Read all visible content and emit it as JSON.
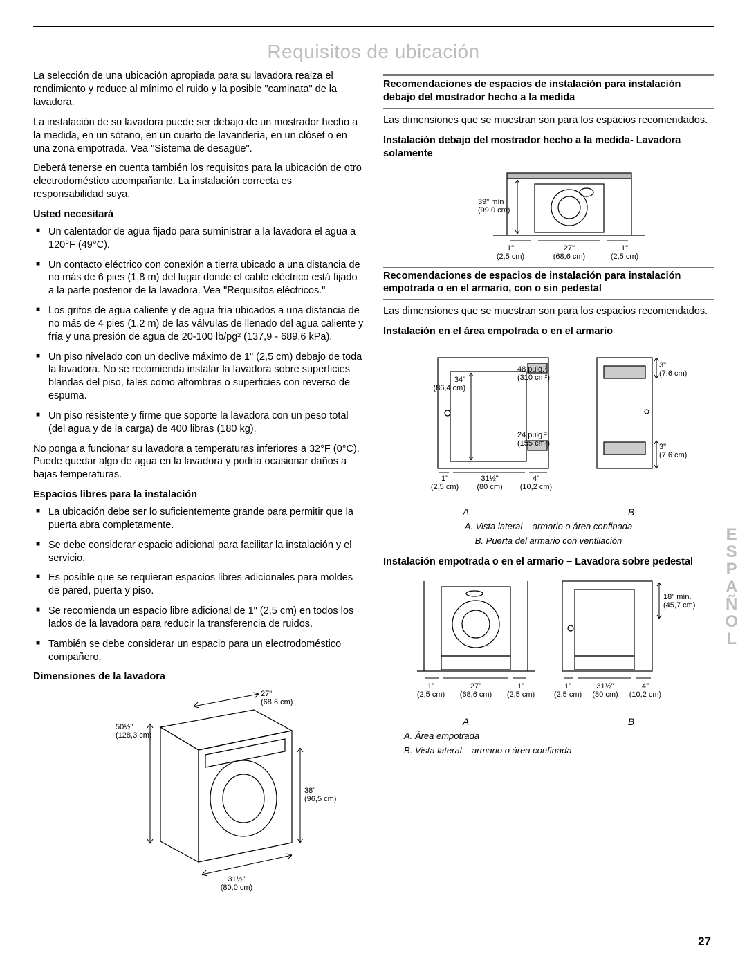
{
  "title": "Requisitos de ubicación",
  "left": {
    "p1": "La selección de una ubicación apropiada para su lavadora realza el rendimiento y reduce al mínimo el ruido y la posible \"caminata\" de la lavadora.",
    "p2": "La instalación de su lavadora puede ser debajo de un mostrador hecho a la medida, en un sótano, en un cuarto de lavandería, en un clóset o en una zona empotrada. Vea \"Sistema de desagüe\".",
    "p3": "Deberá tenerse en cuenta también los requisitos para la ubicación de otro electrodoméstico acompañante. La instalación correcta es responsabilidad suya.",
    "need_h": "Usted necesitará",
    "need": [
      "Un calentador de agua fijado para suministrar a la lavadora el agua a 120°F (49°C).",
      "Un contacto eléctrico con conexión a tierra ubicado a una distancia de no más de 6 pies (1,8 m) del lugar donde el cable eléctrico está fijado a la parte posterior de la lavadora. Vea \"Requisitos eléctricos.\"",
      "Los grifos de agua caliente y de agua fría ubicados a una distancia de no más de 4 pies (1,2 m) de las válvulas de llenado del agua caliente y fría y una presión de agua de 20-100 lb/pg² (137,9 - 689,6 kPa).",
      "Un piso nivelado con un declive máximo de 1\" (2,5 cm) debajo de toda la lavadora. No se recomienda instalar la lavadora sobre superficies blandas del piso, tales como alfombras o superficies con reverso de espuma.",
      "Un piso resistente y firme que soporte la lavadora con un peso total (del agua y de la carga) de 400 libras (180 kg)."
    ],
    "p4": "No ponga a funcionar su lavadora a temperaturas inferiores a 32°F (0°C). Puede quedar algo de agua en la lavadora y podría ocasionar daños a bajas temperaturas.",
    "clear_h": "Espacios libres para la instalación",
    "clear": [
      "La ubicación debe ser lo suficientemente grande para permitir que la puerta abra completamente.",
      "Se debe considerar espacio adicional para facilitar la instalación y el servicio.",
      "Es posible que se requieran espacios libres adicionales para moldes de pared, puerta y piso.",
      "Se recomienda un espacio libre adicional de 1\" (2,5 cm) en todos los lados de la lavadora para reducir la transferencia de ruidos.",
      "También se debe considerar un espacio para un electrodoméstico compañero."
    ],
    "dim_h": "Dimensiones de la lavadora",
    "dim": {
      "w": "27\"\n(68,6 cm)",
      "h": "50½\"\n(128,3 cm)",
      "hfront": "38\"\n(96,5 cm)",
      "d": "31½\"\n(80,0 cm)"
    }
  },
  "right": {
    "bar1": "Recomendaciones de espacios de instalación para instalación debajo del mostrador hecho a la medida",
    "p1": "Las dimensiones que se muestran son para los espacios recomendados.",
    "sub1": "Instalación debajo del mostrador hecho a la medida- Lavadora solamente",
    "d1": {
      "h": "39\" mín\n(99,0 cm)",
      "l": "1\"\n(2,5 cm)",
      "w": "27\"\n(68,6 cm)",
      "r": "1\"\n(2,5 cm)"
    },
    "bar2": "Recomendaciones de espacios de instalación para instalación empotrada o en el armario, con o sin pedestal",
    "p2": "Las dimensiones que se muestran son para los espacios recomendados.",
    "sub2": "Instalación en el área empotrada o en el armario",
    "d2": {
      "h1": "34\"\n(86,4 cm)",
      "vtop": "48 pulg.²\n(310 cm²)",
      "vbot": "24 pulg.²\n(155 cm²)",
      "g1": "1\"\n(2,5 cm)",
      "g2": "31½\"\n(80 cm)",
      "g3": "4\"\n(10,2 cm)",
      "t": "3\"\n(7,6 cm)",
      "b": "3\"\n(7,6 cm)"
    },
    "cap2a": "A. Vista lateral – armario o área confinada",
    "cap2b": "B. Puerta del armario con ventilación",
    "sub3": "Instalación empotrada o en el armario – Lavadora sobre pedestal",
    "d3": {
      "l": "1\"\n(2,5 cm)",
      "w": "27\"\n(68,6 cm)",
      "r": "1\"\n(2,5 cm)",
      "bl": "1\"\n(2,5 cm)",
      "bw": "31½\"\n(80 cm)",
      "br": "4\"\n(10,2 cm)",
      "bh": "18\" mín.\n(45,7 cm)"
    },
    "cap3a": "A. Área empotrada",
    "cap3b": "B. Vista lateral – armario o área confinada",
    "A": "A",
    "B": "B"
  },
  "side": "ESPAÑOL",
  "page": "27"
}
